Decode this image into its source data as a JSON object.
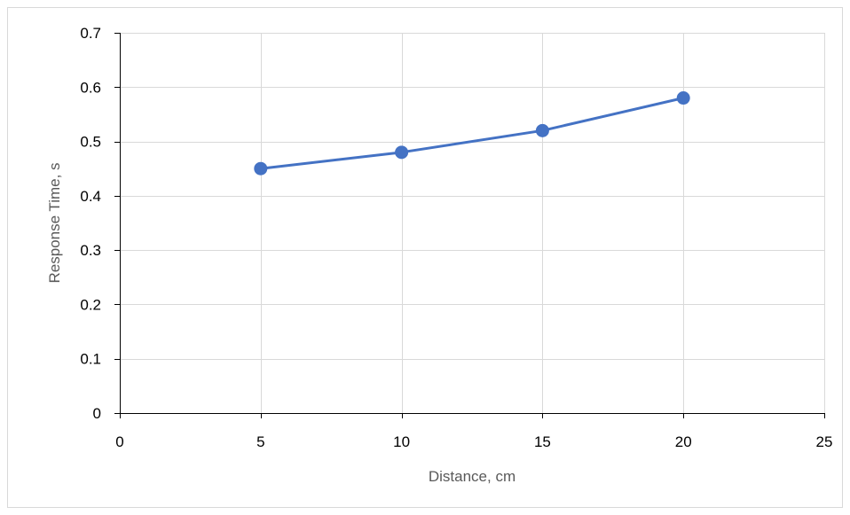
{
  "chart_data": {
    "type": "scatter",
    "title": "",
    "xlabel": "Distance, cm",
    "ylabel": "Response Time, s",
    "xlim": [
      0,
      25
    ],
    "ylim": [
      0,
      0.7
    ],
    "xticks": [
      0,
      5,
      10,
      15,
      20,
      25
    ],
    "yticks": [
      0,
      0.1,
      0.2,
      0.3,
      0.4,
      0.5,
      0.6,
      0.7
    ],
    "xtick_labels": [
      "0",
      "5",
      "10",
      "15",
      "20",
      "25"
    ],
    "ytick_labels": [
      "0",
      "0.1",
      "0.2",
      "0.3",
      "0.4",
      "0.5",
      "0.6",
      "0.7"
    ],
    "grid": true,
    "legend": "none",
    "series": [
      {
        "x": [
          5,
          10,
          15,
          20
        ],
        "y": [
          0.45,
          0.48,
          0.52,
          0.58
        ],
        "color": "#4472c4",
        "marker": "circle",
        "line": "straight"
      }
    ]
  }
}
